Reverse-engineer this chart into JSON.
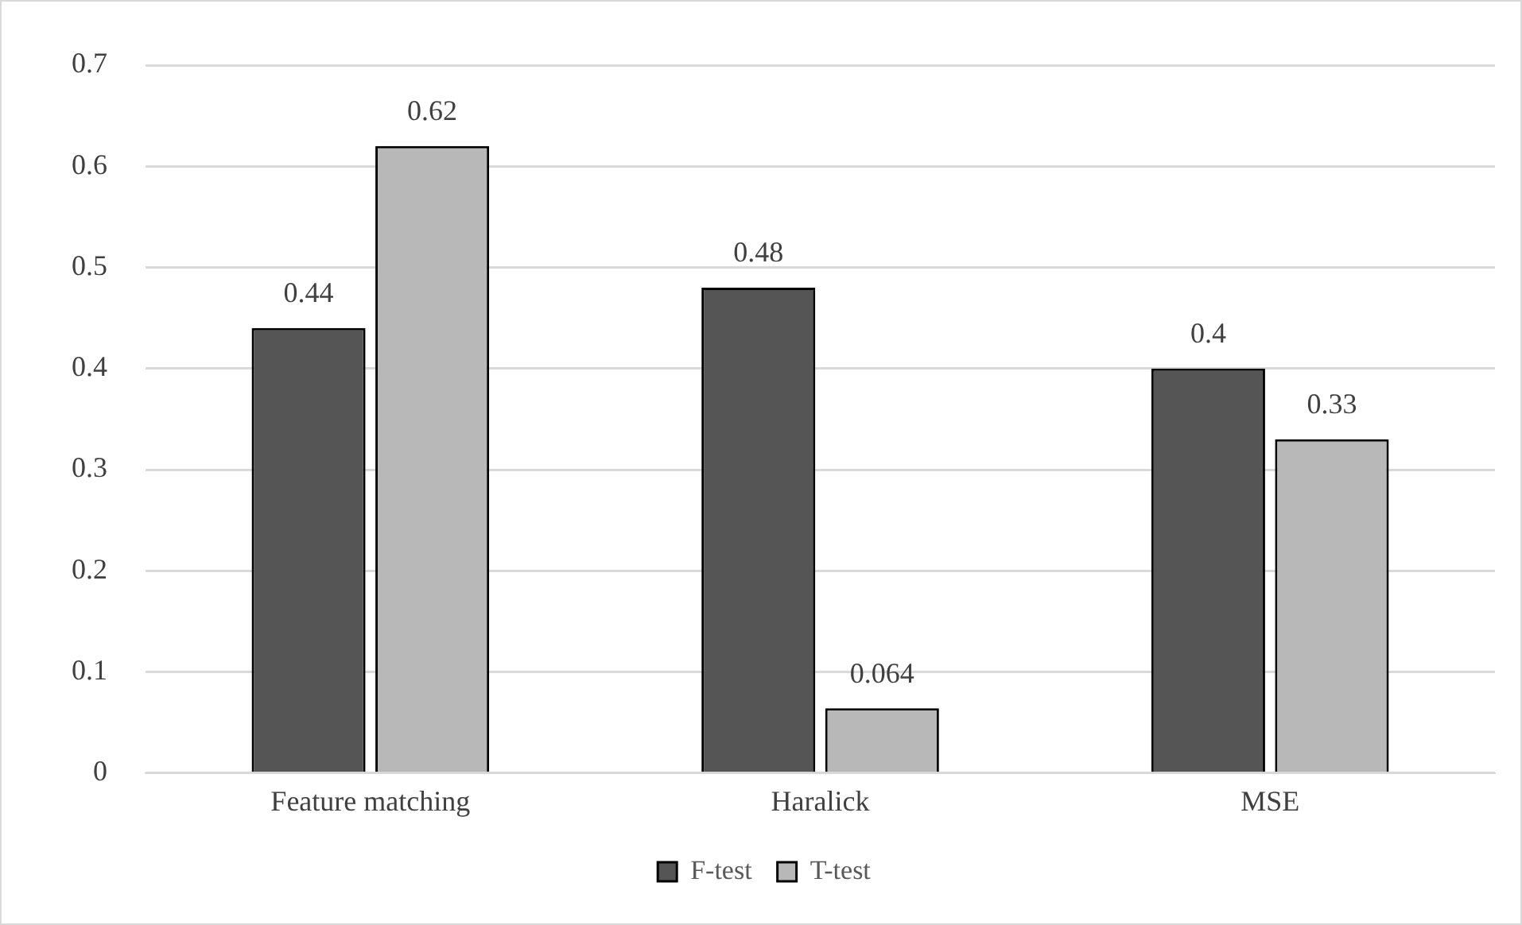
{
  "chart_data": {
    "type": "bar",
    "categories": [
      "Feature matching",
      "Haralick",
      "MSE"
    ],
    "series": [
      {
        "name": "F-test",
        "color": "#555555",
        "values": [
          0.44,
          0.48,
          0.4
        ]
      },
      {
        "name": "T-test",
        "color": "#b8b8b8",
        "values": [
          0.62,
          0.064,
          0.33
        ]
      }
    ],
    "ylim": [
      0,
      0.7
    ],
    "yticks": [
      0,
      0.1,
      0.2,
      0.3,
      0.4,
      0.5,
      0.6,
      0.7
    ],
    "grid": "y",
    "legend": "bottom",
    "data_labels": true
  }
}
